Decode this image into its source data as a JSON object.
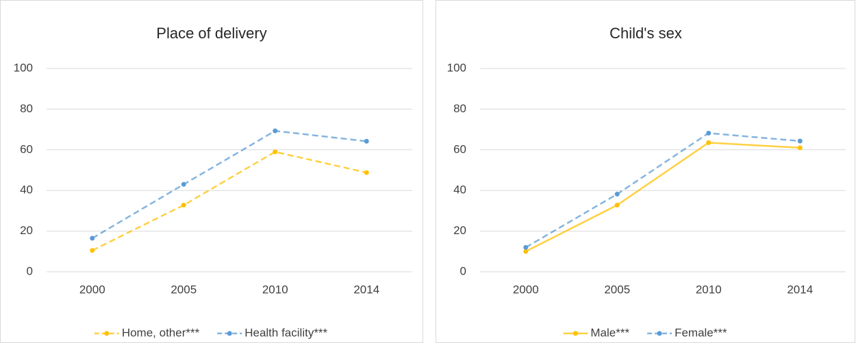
{
  "chart_data": [
    {
      "type": "line",
      "title": "Place of delivery",
      "categories": [
        "2000",
        "2005",
        "2010",
        "2014"
      ],
      "series": [
        {
          "name": "Home, other***",
          "color": "#ffc000",
          "dashed": true,
          "values": [
            10.5,
            32.8,
            59,
            48.8
          ]
        },
        {
          "name": "Health facility***",
          "color": "#5b9bd5",
          "dashed": true,
          "values": [
            16.5,
            43,
            69.3,
            64.2
          ]
        }
      ],
      "ylim": [
        0,
        100
      ],
      "yticks": [
        0,
        20,
        40,
        60,
        80,
        100
      ],
      "grid": true,
      "legend": "bottom"
    },
    {
      "type": "line",
      "title": "Child's sex",
      "categories": [
        "2000",
        "2005",
        "2010",
        "2014"
      ],
      "series": [
        {
          "name": "Male***",
          "color": "#ffc000",
          "dashed": false,
          "values": [
            10,
            32.8,
            63.5,
            61
          ]
        },
        {
          "name": "Female***",
          "color": "#5b9bd5",
          "dashed": true,
          "values": [
            12,
            38.2,
            68.2,
            64.3
          ]
        }
      ],
      "ylim": [
        0,
        100
      ],
      "yticks": [
        0,
        20,
        40,
        60,
        80,
        100
      ],
      "grid": true,
      "legend": "bottom"
    }
  ]
}
